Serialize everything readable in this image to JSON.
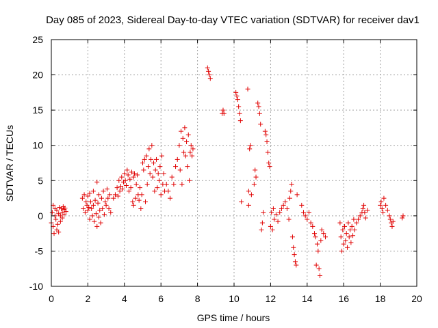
{
  "chart_data": {
    "type": "scatter",
    "title": "Day 085 of 2023, Sidereal Day-to-day VTEC variation (SDTVAR) for receiver dav1",
    "xlabel": "GPS time / hours",
    "ylabel": "SDTVAR / TECUs",
    "xlim": [
      0,
      20
    ],
    "ylim": [
      -10,
      25
    ],
    "xticks": [
      "0",
      "2",
      "4",
      "6",
      "8",
      "10",
      "12",
      "14",
      "16",
      "18",
      "20"
    ],
    "yticks": [
      "-10",
      "-5",
      "0",
      "5",
      "10",
      "15",
      "20",
      "25"
    ],
    "grid": true,
    "marker": "+",
    "color": "#e00000",
    "series": [
      {
        "name": "SDTVAR",
        "points": [
          [
            0.0,
            -1.0
          ],
          [
            0.05,
            0.5
          ],
          [
            0.1,
            1.5
          ],
          [
            0.1,
            -1.5
          ],
          [
            0.15,
            -2.5
          ],
          [
            0.2,
            0.0
          ],
          [
            0.2,
            1.0
          ],
          [
            0.25,
            -0.5
          ],
          [
            0.3,
            -2.0
          ],
          [
            0.3,
            0.8
          ],
          [
            0.35,
            -1.2
          ],
          [
            0.4,
            0.3
          ],
          [
            0.4,
            -2.3
          ],
          [
            0.45,
            1.2
          ],
          [
            0.5,
            0.0
          ],
          [
            0.5,
            -0.8
          ],
          [
            0.55,
            1.0
          ],
          [
            0.6,
            0.5
          ],
          [
            0.6,
            -0.3
          ],
          [
            0.65,
            1.3
          ],
          [
            0.7,
            0.2
          ],
          [
            0.7,
            0.9
          ],
          [
            0.75,
            1.1
          ],
          [
            0.8,
            0.6
          ],
          [
            1.7,
            2.5
          ],
          [
            1.75,
            1.0
          ],
          [
            1.8,
            3.0
          ],
          [
            1.85,
            0.5
          ],
          [
            1.9,
            2.0
          ],
          [
            1.95,
            1.5
          ],
          [
            2.0,
            0.8
          ],
          [
            2.0,
            2.8
          ],
          [
            2.05,
            1.2
          ],
          [
            2.1,
            3.2
          ],
          [
            2.1,
            -0.5
          ],
          [
            2.15,
            2.0
          ],
          [
            2.2,
            1.0
          ],
          [
            2.25,
            0.0
          ],
          [
            2.3,
            3.5
          ],
          [
            2.3,
            1.5
          ],
          [
            2.35,
            -0.8
          ],
          [
            2.4,
            2.2
          ],
          [
            2.45,
            0.3
          ],
          [
            2.5,
            -1.5
          ],
          [
            2.5,
            4.8
          ],
          [
            2.55,
            1.8
          ],
          [
            2.6,
            -0.2
          ],
          [
            2.6,
            3.0
          ],
          [
            2.65,
            0.8
          ],
          [
            2.7,
            -1.0
          ],
          [
            2.75,
            2.5
          ],
          [
            2.8,
            1.0
          ],
          [
            2.85,
            3.5
          ],
          [
            2.9,
            0.2
          ],
          [
            2.95,
            2.0
          ],
          [
            3.0,
            1.5
          ],
          [
            3.05,
            3.8
          ],
          [
            3.1,
            2.5
          ],
          [
            3.15,
            1.0
          ],
          [
            3.2,
            3.0
          ],
          [
            3.25,
            0.5
          ],
          [
            3.4,
            2.5
          ],
          [
            3.5,
            3.0
          ],
          [
            3.6,
            4.0
          ],
          [
            3.65,
            2.8
          ],
          [
            3.7,
            5.0
          ],
          [
            3.75,
            3.5
          ],
          [
            3.8,
            4.2
          ],
          [
            3.85,
            5.5
          ],
          [
            3.9,
            3.8
          ],
          [
            3.95,
            4.8
          ],
          [
            4.0,
            6.0
          ],
          [
            4.05,
            5.0
          ],
          [
            4.1,
            4.3
          ],
          [
            4.15,
            6.5
          ],
          [
            4.2,
            5.8
          ],
          [
            4.25,
            3.5
          ],
          [
            4.3,
            5.2
          ],
          [
            4.35,
            4.0
          ],
          [
            4.4,
            6.2
          ],
          [
            4.45,
            2.0
          ],
          [
            4.5,
            1.5
          ],
          [
            4.5,
            5.5
          ],
          [
            4.55,
            6.0
          ],
          [
            4.6,
            2.5
          ],
          [
            4.65,
            4.5
          ],
          [
            4.7,
            5.8
          ],
          [
            4.75,
            3.0
          ],
          [
            4.8,
            2.2
          ],
          [
            4.85,
            4.0
          ],
          [
            4.9,
            1.0
          ],
          [
            4.95,
            3.0
          ],
          [
            5.0,
            7.5
          ],
          [
            5.05,
            6.5
          ],
          [
            5.1,
            8.0
          ],
          [
            5.15,
            2.0
          ],
          [
            5.2,
            8.5
          ],
          [
            5.25,
            4.5
          ],
          [
            5.3,
            7.0
          ],
          [
            5.35,
            9.5
          ],
          [
            5.4,
            6.0
          ],
          [
            5.45,
            8.0
          ],
          [
            5.5,
            10.0
          ],
          [
            5.55,
            5.5
          ],
          [
            5.6,
            7.5
          ],
          [
            5.65,
            3.5
          ],
          [
            5.7,
            6.5
          ],
          [
            5.75,
            8.0
          ],
          [
            5.8,
            4.0
          ],
          [
            5.85,
            6.0
          ],
          [
            5.9,
            5.0
          ],
          [
            5.95,
            7.0
          ],
          [
            6.0,
            3.0
          ],
          [
            6.05,
            8.5
          ],
          [
            6.1,
            4.5
          ],
          [
            6.15,
            6.0
          ],
          [
            6.2,
            3.5
          ],
          [
            6.3,
            4.5
          ],
          [
            6.4,
            3.5
          ],
          [
            6.5,
            2.5
          ],
          [
            6.6,
            5.5
          ],
          [
            6.7,
            4.5
          ],
          [
            6.8,
            7.0
          ],
          [
            6.9,
            8.0
          ],
          [
            7.0,
            10.0
          ],
          [
            7.05,
            6.5
          ],
          [
            7.1,
            12.0
          ],
          [
            7.15,
            4.5
          ],
          [
            7.2,
            11.0
          ],
          [
            7.25,
            9.0
          ],
          [
            7.3,
            12.5
          ],
          [
            7.35,
            8.5
          ],
          [
            7.4,
            10.5
          ],
          [
            7.45,
            7.0
          ],
          [
            7.5,
            11.5
          ],
          [
            7.55,
            5.0
          ],
          [
            7.6,
            9.0
          ],
          [
            7.65,
            10.0
          ],
          [
            7.7,
            8.5
          ],
          [
            7.75,
            9.5
          ],
          [
            8.55,
            21.0
          ],
          [
            8.6,
            20.5
          ],
          [
            8.65,
            20.0
          ],
          [
            8.7,
            19.5
          ],
          [
            9.35,
            14.5
          ],
          [
            9.4,
            15.0
          ],
          [
            9.45,
            14.5
          ],
          [
            10.1,
            17.5
          ],
          [
            10.15,
            17.0
          ],
          [
            10.2,
            16.5
          ],
          [
            10.25,
            15.5
          ],
          [
            10.3,
            14.5
          ],
          [
            10.35,
            13.5
          ],
          [
            10.4,
            2.0
          ],
          [
            10.75,
            18.0
          ],
          [
            10.8,
            3.5
          ],
          [
            10.8,
            1.5
          ],
          [
            10.85,
            9.5
          ],
          [
            10.9,
            10.0
          ],
          [
            10.95,
            3.0
          ],
          [
            11.1,
            4.5
          ],
          [
            11.15,
            6.5
          ],
          [
            11.2,
            5.5
          ],
          [
            11.3,
            16.0
          ],
          [
            11.35,
            15.5
          ],
          [
            11.4,
            14.5
          ],
          [
            11.45,
            13.0
          ],
          [
            11.5,
            -2.0
          ],
          [
            11.55,
            -1.0
          ],
          [
            11.6,
            0.5
          ],
          [
            11.7,
            12.0
          ],
          [
            11.75,
            11.5
          ],
          [
            11.8,
            10.5
          ],
          [
            11.85,
            9.0
          ],
          [
            11.9,
            7.5
          ],
          [
            11.95,
            7.0
          ],
          [
            12.0,
            -1.5
          ],
          [
            12.05,
            0.5
          ],
          [
            12.1,
            -2.0
          ],
          [
            12.15,
            1.0
          ],
          [
            12.2,
            -0.5
          ],
          [
            12.3,
            0.2
          ],
          [
            12.4,
            -0.8
          ],
          [
            12.5,
            0.5
          ],
          [
            12.6,
            1.0
          ],
          [
            12.7,
            1.5
          ],
          [
            12.8,
            2.0
          ],
          [
            12.9,
            1.0
          ],
          [
            13.0,
            -0.5
          ],
          [
            13.05,
            2.5
          ],
          [
            13.1,
            3.5
          ],
          [
            13.15,
            4.5
          ],
          [
            13.2,
            -3.0
          ],
          [
            13.25,
            -4.5
          ],
          [
            13.3,
            -5.5
          ],
          [
            13.35,
            -6.5
          ],
          [
            13.4,
            -7.0
          ],
          [
            13.45,
            3.0
          ],
          [
            13.7,
            1.5
          ],
          [
            13.8,
            0.5
          ],
          [
            13.9,
            0.0
          ],
          [
            14.0,
            -0.5
          ],
          [
            14.1,
            0.5
          ],
          [
            14.2,
            -1.0
          ],
          [
            14.3,
            -1.5
          ],
          [
            14.4,
            -2.5
          ],
          [
            14.45,
            -3.0
          ],
          [
            14.5,
            -7.0
          ],
          [
            14.55,
            -4.0
          ],
          [
            14.6,
            -5.0
          ],
          [
            14.65,
            -7.5
          ],
          [
            14.7,
            -8.5
          ],
          [
            14.75,
            -3.5
          ],
          [
            14.8,
            -2.0
          ],
          [
            14.9,
            -2.5
          ],
          [
            15.0,
            -3.0
          ],
          [
            15.8,
            -1.0
          ],
          [
            15.85,
            -3.0
          ],
          [
            15.9,
            -5.0
          ],
          [
            15.95,
            -2.0
          ],
          [
            16.0,
            -4.0
          ],
          [
            16.05,
            -1.5
          ],
          [
            16.1,
            -3.5
          ],
          [
            16.15,
            -2.5
          ],
          [
            16.2,
            -4.5
          ],
          [
            16.25,
            -1.0
          ],
          [
            16.3,
            -3.0
          ],
          [
            16.35,
            -2.0
          ],
          [
            16.4,
            -3.8
          ],
          [
            16.45,
            -1.5
          ],
          [
            16.5,
            -2.8
          ],
          [
            16.55,
            -0.5
          ],
          [
            16.6,
            -2.0
          ],
          [
            16.7,
            -1.0
          ],
          [
            16.8,
            -0.5
          ],
          [
            16.9,
            0.0
          ],
          [
            17.0,
            0.5
          ],
          [
            17.05,
            1.0
          ],
          [
            17.1,
            1.5
          ],
          [
            17.15,
            0.5
          ],
          [
            17.2,
            -0.3
          ],
          [
            17.3,
            0.8
          ],
          [
            18.0,
            1.5
          ],
          [
            18.05,
            2.0
          ],
          [
            18.1,
            1.0
          ],
          [
            18.15,
            0.5
          ],
          [
            18.2,
            2.5
          ],
          [
            18.3,
            1.5
          ],
          [
            18.4,
            0.8
          ],
          [
            18.5,
            0.0
          ],
          [
            18.55,
            -0.5
          ],
          [
            18.6,
            -1.0
          ],
          [
            18.65,
            -1.5
          ],
          [
            18.7,
            -0.8
          ],
          [
            19.2,
            -0.3
          ],
          [
            19.25,
            0.0
          ]
        ]
      }
    ]
  }
}
